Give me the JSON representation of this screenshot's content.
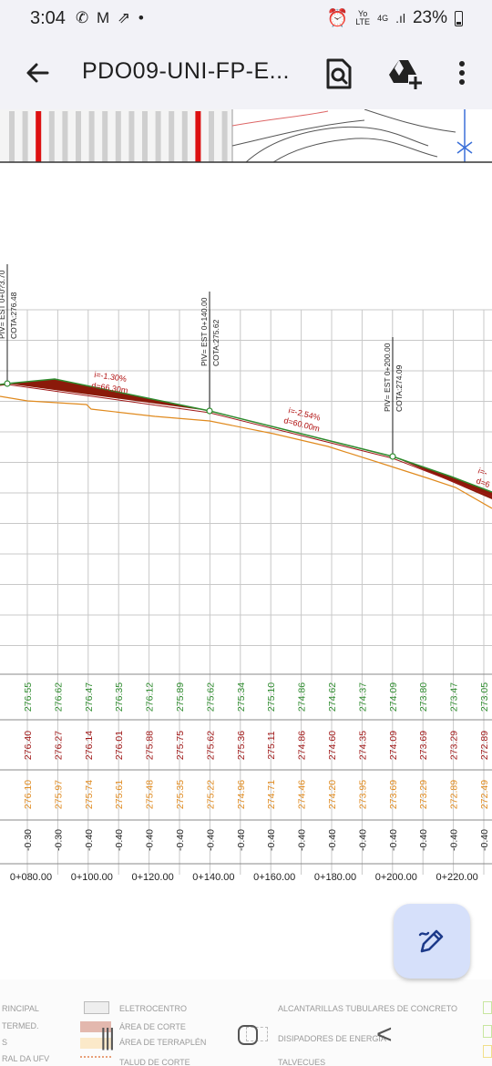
{
  "status_bar": {
    "time": "3:04",
    "left_icons": [
      "whatsapp-icon",
      "gmail-icon",
      "missed-call-icon",
      "dot-icon"
    ],
    "network_top": "Yo",
    "network_bottom": "LTE",
    "network_gen": "4G",
    "battery": "23%"
  },
  "app_bar": {
    "title": "PDO09-UNI-FP-E...",
    "back_icon": "arrow-left-icon",
    "search_icon": "document-search-icon",
    "drive_icon": "add-to-drive-icon",
    "more_icon": "more-vertical-icon"
  },
  "profile": {
    "piv": [
      {
        "label": "PIV= EST 0+0?3.70",
        "cota": "COTA:276.48"
      },
      {
        "label": "PIV= EST 0+140.00",
        "cota": "COTA:275.62"
      },
      {
        "label": "PIV= EST 0+200.00",
        "cota": "COTA:274.09"
      }
    ],
    "grades": [
      {
        "i": "i=-1.30%",
        "d": "d=66.30m"
      },
      {
        "i": "i=-2.54%",
        "d": "d=60.00m"
      },
      {
        "i": "i=-",
        "d": "d=6"
      }
    ],
    "stations": [
      "0+080.00",
      "0+100.00",
      "0+120.00",
      "0+140.00",
      "0+160.00",
      "0+180.00",
      "0+200.00",
      "0+220.00"
    ],
    "rows": {
      "green": [
        "276.55",
        "276.62",
        "276.47",
        "276.35",
        "276.12",
        "275.89",
        "275.62",
        "275.34",
        "275.10",
        "274.86",
        "274.62",
        "274.37",
        "274.09",
        "273.80",
        "273.47",
        "273.05"
      ],
      "red": [
        "276.40",
        "276.27",
        "276.14",
        "276.01",
        "275.88",
        "275.75",
        "275.62",
        "275.36",
        "275.11",
        "274.86",
        "274.60",
        "274.35",
        "274.09",
        "273.69",
        "273.29",
        "272.89"
      ],
      "orange": [
        "276.10",
        "275.97",
        "275.74",
        "275.61",
        "275.48",
        "275.35",
        "275.22",
        "274.96",
        "274.71",
        "274.46",
        "274.20",
        "273.95",
        "273.69",
        "273.29",
        "272.89",
        "272.49"
      ],
      "depth": [
        "-0.30",
        "-0.30",
        "-0.40",
        "-0.40",
        "-0.40",
        "-0.40",
        "-0.40",
        "-0.40",
        "-0.40",
        "-0.40",
        "-0.40",
        "-0.40",
        "-0.40",
        "-0.40",
        "-0.40",
        "-0.40"
      ]
    },
    "colors": {
      "green": "#2e8b2e",
      "red": "#a01818",
      "orange": "#e08a1e",
      "cut_fill": "#8b1a0a",
      "grid": "#c8c8c8"
    }
  },
  "legend": {
    "items": [
      "RINCIPAL",
      "TERMED.",
      "S",
      "RAL DA UFV",
      "ELETROCENTRO",
      "ÁREA DE CORTE",
      "ÁREA DE TERRAPLÉN",
      "TALUD DE CORTE",
      "ALCANTARILLAS TUBULARES DE CONCRETO",
      "DISIPADORES DE ENERGÍA",
      "TALVECUES"
    ]
  },
  "fab": {
    "icon": "edit-pen-icon"
  },
  "nav_bar": {
    "recents_icon": "recents-icon",
    "home_icon": "home-icon",
    "back_icon": "nav-back-icon"
  }
}
